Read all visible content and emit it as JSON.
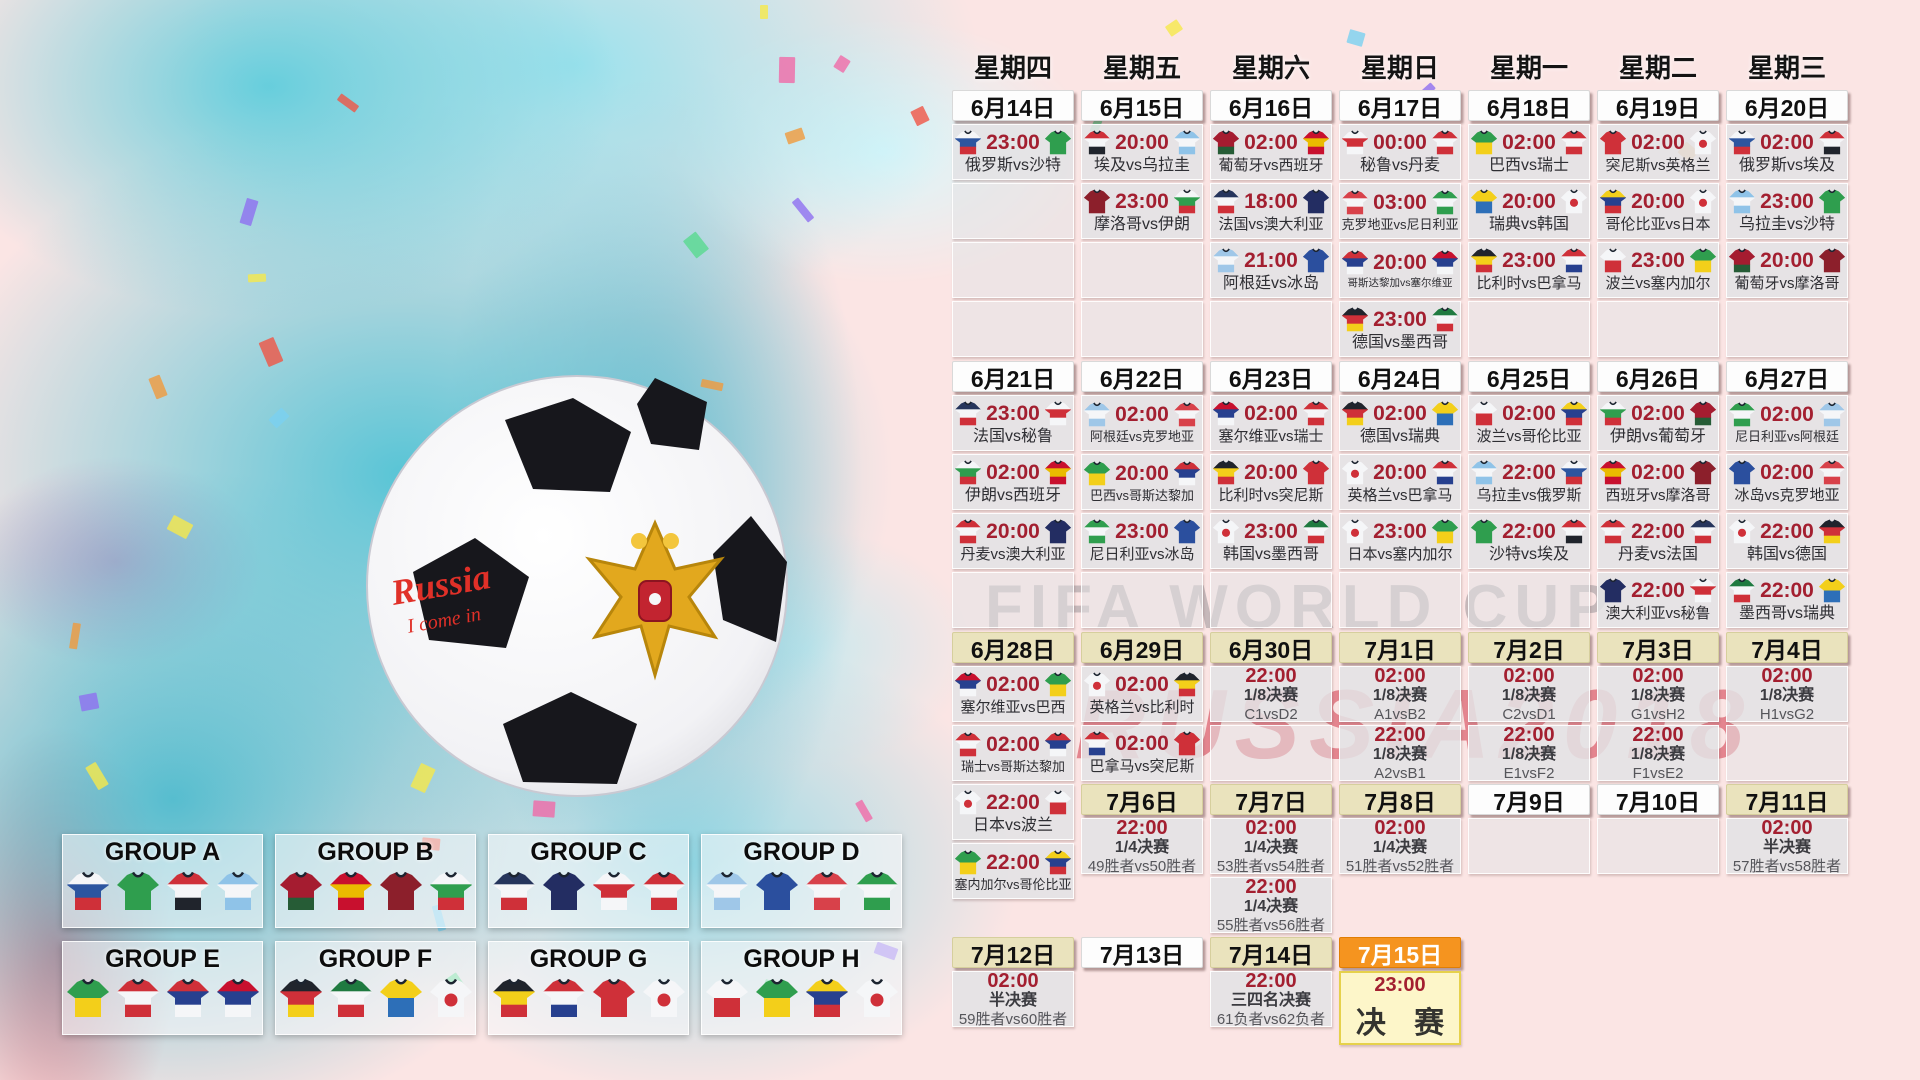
{
  "watermark": {
    "line1": "FIFA WORLD CUP",
    "line2": "RUSSIA2018"
  },
  "ball": {
    "graffiti_line1": "Russia",
    "graffiti_line2": "I come in"
  },
  "colors": {
    "background_pink": "#fbe5e4",
    "teal_splash": "#42c0d4",
    "time_red": "#a31f30",
    "date_plain_bg": "#fdfdfd",
    "date_tan_bg": "#eae3bd",
    "date_final_bg": "#f5941f",
    "cell_bg": "#e3e3e5",
    "final_cell_bg": "#fdf7c7"
  },
  "weekdays": [
    "星期四",
    "星期五",
    "星期六",
    "星期日",
    "星期一",
    "星期二",
    "星期三"
  ],
  "sections": [
    {
      "columns": [
        [
          {
            "k": "d",
            "label": "6月14日",
            "style": "plain"
          },
          {
            "k": "m",
            "time": "23:00",
            "home": "俄罗斯",
            "away": "沙特"
          },
          {
            "k": "e"
          },
          {
            "k": "e"
          },
          {
            "k": "e"
          }
        ],
        [
          {
            "k": "d",
            "label": "6月15日",
            "style": "plain"
          },
          {
            "k": "m",
            "time": "20:00",
            "home": "埃及",
            "away": "乌拉圭"
          },
          {
            "k": "m",
            "time": "23:00",
            "home": "摩洛哥",
            "away": "伊朗"
          },
          {
            "k": "e"
          },
          {
            "k": "e"
          }
        ],
        [
          {
            "k": "d",
            "label": "6月16日",
            "style": "plain"
          },
          {
            "k": "m",
            "time": "02:00",
            "home": "葡萄牙",
            "away": "西班牙"
          },
          {
            "k": "m",
            "time": "18:00",
            "home": "法国",
            "away": "澳大利亚"
          },
          {
            "k": "m",
            "time": "21:00",
            "home": "阿根廷",
            "away": "冰岛"
          },
          {
            "k": "e"
          }
        ],
        [
          {
            "k": "d",
            "label": "6月17日",
            "style": "plain"
          },
          {
            "k": "m",
            "time": "00:00",
            "home": "秘鲁",
            "away": "丹麦"
          },
          {
            "k": "m",
            "time": "03:00",
            "home": "克罗地亚",
            "away": "尼日利亚"
          },
          {
            "k": "m",
            "time": "20:00",
            "home": "哥斯达黎加",
            "away": "塞尔维亚"
          },
          {
            "k": "m",
            "time": "23:00",
            "home": "德国",
            "away": "墨西哥"
          }
        ],
        [
          {
            "k": "d",
            "label": "6月18日",
            "style": "plain"
          },
          {
            "k": "m",
            "time": "02:00",
            "home": "巴西",
            "away": "瑞士"
          },
          {
            "k": "m",
            "time": "20:00",
            "home": "瑞典",
            "away": "韩国"
          },
          {
            "k": "m",
            "time": "23:00",
            "home": "比利时",
            "away": "巴拿马"
          },
          {
            "k": "e"
          }
        ],
        [
          {
            "k": "d",
            "label": "6月19日",
            "style": "plain"
          },
          {
            "k": "m",
            "time": "02:00",
            "home": "突尼斯",
            "away": "英格兰"
          },
          {
            "k": "m",
            "time": "20:00",
            "home": "哥伦比亚",
            "away": "日本"
          },
          {
            "k": "m",
            "time": "23:00",
            "home": "波兰",
            "away": "塞内加尔"
          },
          {
            "k": "e"
          }
        ],
        [
          {
            "k": "d",
            "label": "6月20日",
            "style": "plain"
          },
          {
            "k": "m",
            "time": "02:00",
            "home": "俄罗斯",
            "away": "埃及"
          },
          {
            "k": "m",
            "time": "23:00",
            "home": "乌拉圭",
            "away": "沙特"
          },
          {
            "k": "m",
            "time": "20:00",
            "home": "葡萄牙",
            "away": "摩洛哥"
          },
          {
            "k": "e"
          }
        ]
      ]
    },
    {
      "columns": [
        [
          {
            "k": "d",
            "label": "6月21日",
            "style": "plain"
          },
          {
            "k": "m",
            "time": "23:00",
            "home": "法国",
            "away": "秘鲁"
          },
          {
            "k": "m",
            "time": "02:00",
            "home": "伊朗",
            "away": "西班牙"
          },
          {
            "k": "m",
            "time": "20:00",
            "home": "丹麦",
            "away": "澳大利亚"
          },
          {
            "k": "e"
          }
        ],
        [
          {
            "k": "d",
            "label": "6月22日",
            "style": "plain"
          },
          {
            "k": "m",
            "time": "02:00",
            "home": "阿根廷",
            "away": "克罗地亚"
          },
          {
            "k": "m",
            "time": "20:00",
            "home": "巴西",
            "away": "哥斯达黎加"
          },
          {
            "k": "m",
            "time": "23:00",
            "home": "尼日利亚",
            "away": "冰岛"
          },
          {
            "k": "e"
          }
        ],
        [
          {
            "k": "d",
            "label": "6月23日",
            "style": "plain"
          },
          {
            "k": "m",
            "time": "02:00",
            "home": "塞尔维亚",
            "away": "瑞士"
          },
          {
            "k": "m",
            "time": "20:00",
            "home": "比利时",
            "away": "突尼斯"
          },
          {
            "k": "m",
            "time": "23:00",
            "home": "韩国",
            "away": "墨西哥"
          },
          {
            "k": "e"
          }
        ],
        [
          {
            "k": "d",
            "label": "6月24日",
            "style": "plain"
          },
          {
            "k": "m",
            "time": "02:00",
            "home": "德国",
            "away": "瑞典"
          },
          {
            "k": "m",
            "time": "20:00",
            "home": "英格兰",
            "away": "巴拿马"
          },
          {
            "k": "m",
            "time": "23:00",
            "home": "日本",
            "away": "塞内加尔"
          },
          {
            "k": "e"
          }
        ],
        [
          {
            "k": "d",
            "label": "6月25日",
            "style": "plain"
          },
          {
            "k": "m",
            "time": "02:00",
            "home": "波兰",
            "away": "哥伦比亚"
          },
          {
            "k": "m",
            "time": "22:00",
            "home": "乌拉圭",
            "away": "俄罗斯"
          },
          {
            "k": "m",
            "time": "22:00",
            "home": "沙特",
            "away": "埃及"
          },
          {
            "k": "e"
          }
        ],
        [
          {
            "k": "d",
            "label": "6月26日",
            "style": "plain"
          },
          {
            "k": "m",
            "time": "02:00",
            "home": "伊朗",
            "away": "葡萄牙"
          },
          {
            "k": "m",
            "time": "02:00",
            "home": "西班牙",
            "away": "摩洛哥"
          },
          {
            "k": "m",
            "time": "22:00",
            "home": "丹麦",
            "away": "法国"
          },
          {
            "k": "m",
            "time": "22:00",
            "home": "澳大利亚",
            "away": "秘鲁"
          }
        ],
        [
          {
            "k": "d",
            "label": "6月27日",
            "style": "plain"
          },
          {
            "k": "m",
            "time": "02:00",
            "home": "尼日利亚",
            "away": "阿根廷"
          },
          {
            "k": "m",
            "time": "02:00",
            "home": "冰岛",
            "away": "克罗地亚"
          },
          {
            "k": "m",
            "time": "22:00",
            "home": "韩国",
            "away": "德国"
          },
          {
            "k": "m",
            "time": "22:00",
            "home": "墨西哥",
            "away": "瑞典"
          }
        ]
      ]
    },
    {
      "columns": [
        [
          {
            "k": "d",
            "label": "6月28日",
            "style": "tan"
          },
          {
            "k": "m",
            "time": "02:00",
            "home": "塞尔维亚",
            "away": "巴西"
          },
          {
            "k": "m",
            "time": "02:00",
            "home": "瑞士",
            "away": "哥斯达黎加"
          },
          {
            "k": "m",
            "time": "22:00",
            "home": "日本",
            "away": "波兰"
          },
          {
            "k": "m",
            "time": "22:00",
            "home": "塞内加尔",
            "away": "哥伦比亚"
          }
        ],
        [
          {
            "k": "d",
            "label": "6月29日",
            "style": "tan"
          },
          {
            "k": "m",
            "time": "02:00",
            "home": "英格兰",
            "away": "比利时"
          },
          {
            "k": "m",
            "time": "02:00",
            "home": "巴拿马",
            "away": "突尼斯"
          },
          {
            "k": "d",
            "label": "7月6日",
            "style": "tan"
          },
          {
            "k": "ko",
            "time": "22:00",
            "stage": "1/4决赛",
            "pair": "49胜者vs50胜者"
          }
        ],
        [
          {
            "k": "d",
            "label": "6月30日",
            "style": "tan"
          },
          {
            "k": "ko",
            "time": "22:00",
            "stage": "1/8决赛",
            "pair": "C1vsD2"
          },
          {
            "k": "e"
          },
          {
            "k": "d",
            "label": "7月7日",
            "style": "tan"
          },
          {
            "k": "ko",
            "time": "02:00",
            "stage": "1/4决赛",
            "pair": "53胜者vs54胜者"
          },
          {
            "k": "ko",
            "time": "22:00",
            "stage": "1/4决赛",
            "pair": "55胜者vs56胜者"
          }
        ],
        [
          {
            "k": "d",
            "label": "7月1日",
            "style": "tan"
          },
          {
            "k": "ko",
            "time": "02:00",
            "stage": "1/8决赛",
            "pair": "A1vsB2"
          },
          {
            "k": "ko",
            "time": "22:00",
            "stage": "1/8决赛",
            "pair": "A2vsB1"
          },
          {
            "k": "d",
            "label": "7月8日",
            "style": "tan"
          },
          {
            "k": "ko",
            "time": "02:00",
            "stage": "1/4决赛",
            "pair": "51胜者vs52胜者"
          }
        ],
        [
          {
            "k": "d",
            "label": "7月2日",
            "style": "tan"
          },
          {
            "k": "ko",
            "time": "02:00",
            "stage": "1/8决赛",
            "pair": "C2vsD1"
          },
          {
            "k": "ko",
            "time": "22:00",
            "stage": "1/8决赛",
            "pair": "E1vsF2"
          },
          {
            "k": "d",
            "label": "7月9日",
            "style": "plain"
          },
          {
            "k": "e"
          }
        ],
        [
          {
            "k": "d",
            "label": "7月3日",
            "style": "tan"
          },
          {
            "k": "ko",
            "time": "02:00",
            "stage": "1/8决赛",
            "pair": "G1vsH2"
          },
          {
            "k": "ko",
            "time": "22:00",
            "stage": "1/8决赛",
            "pair": "F1vsE2"
          },
          {
            "k": "d",
            "label": "7月10日",
            "style": "plain"
          },
          {
            "k": "e"
          }
        ],
        [
          {
            "k": "d",
            "label": "7月4日",
            "style": "tan"
          },
          {
            "k": "ko",
            "time": "02:00",
            "stage": "1/8决赛",
            "pair": "H1vsG2"
          },
          {
            "k": "e"
          },
          {
            "k": "d",
            "label": "7月11日",
            "style": "tan"
          },
          {
            "k": "ko",
            "time": "02:00",
            "stage": "半决赛",
            "pair": "57胜者vs58胜者"
          }
        ]
      ]
    },
    {
      "columns": [
        [
          {
            "k": "d",
            "label": "7月12日",
            "style": "tan"
          },
          {
            "k": "ko",
            "time": "02:00",
            "stage": "半决赛",
            "pair": "59胜者vs60胜者"
          }
        ],
        [
          {
            "k": "d",
            "label": "7月13日",
            "style": "plain"
          },
          {
            "k": "b"
          }
        ],
        [
          {
            "k": "d",
            "label": "7月14日",
            "style": "tan"
          },
          {
            "k": "ko",
            "time": "22:00",
            "stage": "三四名决赛",
            "pair": "61负者vs62负者"
          }
        ],
        [
          {
            "k": "d",
            "label": "7月15日",
            "style": "final"
          },
          {
            "k": "f",
            "time": "23:00",
            "label": "决 赛"
          }
        ],
        [
          {
            "k": "b"
          }
        ],
        [
          {
            "k": "b"
          }
        ],
        [
          {
            "k": "b"
          }
        ]
      ]
    }
  ],
  "groups": [
    {
      "name": "GROUP A",
      "teams": [
        "俄罗斯",
        "沙特",
        "埃及",
        "乌拉圭"
      ]
    },
    {
      "name": "GROUP B",
      "teams": [
        "葡萄牙",
        "西班牙",
        "摩洛哥",
        "伊朗"
      ]
    },
    {
      "name": "GROUP C",
      "teams": [
        "法国",
        "澳大利亚",
        "秘鲁",
        "丹麦"
      ]
    },
    {
      "name": "GROUP D",
      "teams": [
        "阿根廷",
        "冰岛",
        "克罗地亚",
        "尼日利亚"
      ]
    },
    {
      "name": "GROUP E",
      "teams": [
        "巴西",
        "瑞士",
        "哥斯达黎加",
        "塞尔维亚"
      ]
    },
    {
      "name": "GROUP F",
      "teams": [
        "德国",
        "墨西哥",
        "瑞典",
        "韩国"
      ]
    },
    {
      "name": "GROUP G",
      "teams": [
        "比利时",
        "巴拿马",
        "突尼斯",
        "英格兰"
      ]
    },
    {
      "name": "GROUP H",
      "teams": [
        "波兰",
        "塞内加尔",
        "哥伦比亚",
        "日本"
      ]
    }
  ],
  "team_colors": {
    "俄罗斯": {
      "b": [
        "#f5f6f8",
        "#2c55a0",
        "#cf3039"
      ]
    },
    "沙特": {
      "b": [
        "#2f9e4e"
      ]
    },
    "埃及": {
      "b": [
        "#cf3039",
        "#f5f6f8",
        "#20242c"
      ]
    },
    "乌拉圭": {
      "b": [
        "#8fc3e8",
        "#f5f6f8",
        "#8fc3e8"
      ]
    },
    "葡萄牙": {
      "b": [
        "#a51c30",
        "#a51c30",
        "#265c36"
      ]
    },
    "西班牙": {
      "b": [
        "#c8102e",
        "#eabb00",
        "#c8102e"
      ]
    },
    "摩洛哥": {
      "b": [
        "#8c1f2b"
      ]
    },
    "伊朗": {
      "b": [
        "#f5f6f8",
        "#2f9e4e",
        "#cf3039"
      ]
    },
    "法国": {
      "b": [
        "#26355c",
        "#f5f6f8",
        "#cf3039"
      ]
    },
    "澳大利亚": {
      "b": [
        "#232d62"
      ]
    },
    "秘鲁": {
      "b": [
        "#f5f6f8",
        "#cf3039",
        "#f5f6f8"
      ]
    },
    "丹麦": {
      "b": [
        "#cf3039",
        "#f5f6f8",
        "#cf3039"
      ]
    },
    "克罗地亚": {
      "b": [
        "#d8414a",
        "#f5f6f8",
        "#d8414a"
      ]
    },
    "尼日利亚": {
      "b": [
        "#2f9e4e",
        "#f5f6f8",
        "#2f9e4e"
      ]
    },
    "巴西": {
      "b": [
        "#2f9e4e",
        "#f3cf1a"
      ]
    },
    "瑞士": {
      "b": [
        "#cf3039",
        "#f5f6f8",
        "#cf3039"
      ]
    },
    "哥斯达黎加": {
      "b": [
        "#cf3039",
        "#27408f",
        "#f5f6f8"
      ]
    },
    "塞尔维亚": {
      "b": [
        "#c8102e",
        "#27408f",
        "#f5f6f8"
      ]
    },
    "德国": {
      "b": [
        "#20242c",
        "#cf3039",
        "#f3cf1a"
      ]
    },
    "墨西哥": {
      "b": [
        "#1f7a40",
        "#f5f6f8",
        "#cf3039"
      ]
    },
    "瑞典": {
      "b": [
        "#f3cf1a",
        "#2d6fb8"
      ]
    },
    "韩国": {
      "b": [
        "#f5f6f8"
      ],
      "d": "#cf3039"
    },
    "比利时": {
      "b": [
        "#20242c",
        "#f3cf1a",
        "#cf3039"
      ]
    },
    "巴拿马": {
      "b": [
        "#cf3039",
        "#f5f6f8",
        "#27408f"
      ]
    },
    "突尼斯": {
      "b": [
        "#cf3039"
      ]
    },
    "英格兰": {
      "b": [
        "#f5f6f8"
      ],
      "d": "#cf3039"
    },
    "波兰": {
      "b": [
        "#f5f6f8",
        "#cf3039"
      ]
    },
    "塞内加尔": {
      "b": [
        "#2f9e4e",
        "#f3cf1a"
      ]
    },
    "哥伦比亚": {
      "b": [
        "#f3cf1a",
        "#27408f",
        "#cf3039"
      ]
    },
    "日本": {
      "b": [
        "#f5f6f8"
      ],
      "d": "#cf3039"
    },
    "阿根廷": {
      "b": [
        "#9fc7e8",
        "#f5f6f8",
        "#9fc7e8"
      ]
    },
    "冰岛": {
      "b": [
        "#2b4f9e"
      ]
    }
  }
}
